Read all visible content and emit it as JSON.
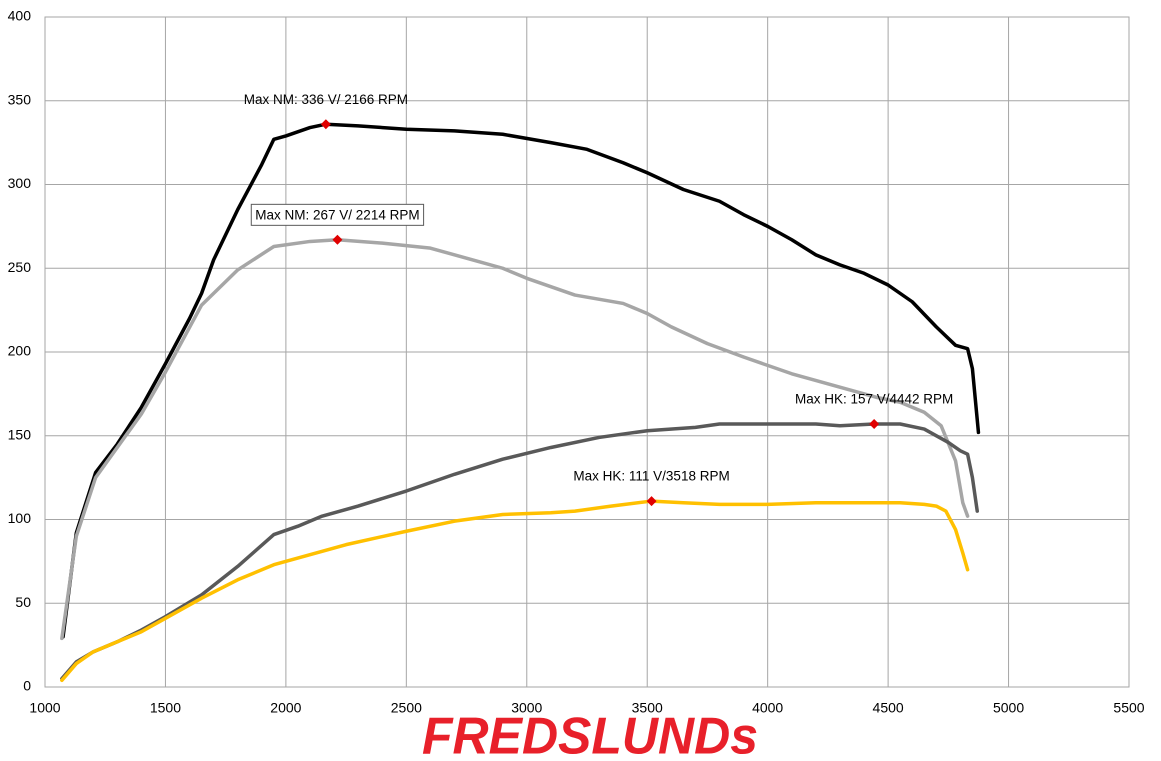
{
  "chart_data": {
    "type": "line",
    "xlim": [
      1000,
      5500
    ],
    "xticks": [
      1000,
      1500,
      2000,
      2500,
      3000,
      3500,
      4000,
      4500,
      5000,
      5500
    ],
    "ylim": [
      0,
      400
    ],
    "yticks": [
      0,
      50,
      100,
      150,
      200,
      250,
      300,
      350,
      400
    ],
    "grid": true,
    "series": [
      {
        "color": "#000000",
        "x": [
          1075,
          1130,
          1210,
          1300,
          1400,
          1500,
          1600,
          1650,
          1700,
          1800,
          1900,
          1950,
          2000,
          2100,
          2166,
          2300,
          2500,
          2700,
          2900,
          3100,
          3250,
          3400,
          3500,
          3650,
          3800,
          3900,
          4000,
          4100,
          4200,
          4300,
          4400,
          4500,
          4600,
          4700,
          4780,
          4830,
          4850,
          4875
        ],
        "values": [
          30,
          92,
          128,
          145,
          167,
          193,
          220,
          235,
          255,
          285,
          312,
          327,
          329,
          334,
          336,
          335,
          333,
          332,
          330,
          325,
          321,
          313,
          307,
          297,
          290,
          282,
          275,
          267,
          258,
          252,
          247,
          240,
          230,
          215,
          204,
          202,
          190,
          152
        ]
      },
      {
        "color": "#a6a6a6",
        "x": [
          1070,
          1130,
          1210,
          1400,
          1500,
          1650,
          1800,
          1950,
          2100,
          2214,
          2400,
          2600,
          2800,
          2900,
          3000,
          3200,
          3400,
          3500,
          3600,
          3750,
          3900,
          4100,
          4300,
          4450,
          4550,
          4650,
          4720,
          4780,
          4810,
          4830
        ],
        "values": [
          29,
          90,
          125,
          163,
          188,
          228,
          249,
          263,
          266,
          267,
          265,
          262,
          254,
          250,
          244,
          234,
          229,
          223,
          215,
          205,
          197,
          187,
          179,
          173,
          170,
          164,
          156,
          135,
          110,
          102
        ]
      },
      {
        "color": "#595959",
        "x": [
          1070,
          1130,
          1200,
          1300,
          1400,
          1500,
          1650,
          1800,
          1950,
          2050,
          2150,
          2300,
          2500,
          2700,
          2900,
          3100,
          3300,
          3500,
          3700,
          3800,
          4000,
          4200,
          4300,
          4442,
          4550,
          4650,
          4750,
          4800,
          4830,
          4850,
          4870
        ],
        "values": [
          5,
          15,
          21,
          27,
          34,
          42,
          55,
          72,
          91,
          96,
          102,
          108,
          117,
          127,
          136,
          143,
          149,
          153,
          155,
          157,
          157,
          157,
          156,
          157,
          157,
          154,
          146,
          141,
          139,
          125,
          105
        ]
      },
      {
        "color": "#ffc000",
        "x": [
          1070,
          1130,
          1200,
          1300,
          1400,
          1500,
          1650,
          1800,
          1950,
          2100,
          2250,
          2500,
          2700,
          2900,
          3100,
          3200,
          3350,
          3518,
          3650,
          3800,
          4000,
          4200,
          4442,
          4550,
          4650,
          4700,
          4740,
          4780,
          4810,
          4830
        ],
        "values": [
          4,
          14,
          21,
          27,
          33,
          41,
          53,
          64,
          73,
          79,
          85,
          93,
          99,
          103,
          104,
          105,
          108,
          111,
          110,
          109,
          109,
          110,
          110,
          110,
          109,
          108,
          105,
          94,
          80,
          70
        ]
      }
    ],
    "annotations": [
      {
        "text": "Max NM: 336 V/ 2166 RPM",
        "x": 2166,
        "y": 336,
        "boxed": false
      },
      {
        "text": "Max NM: 267 V/ 2214 RPM",
        "x": 2214,
        "y": 267,
        "boxed": true
      },
      {
        "text": "Max HK: 157 V/4442 RPM",
        "x": 4442,
        "y": 157,
        "boxed": false
      },
      {
        "text": "Max HK: 111 V/3518 RPM",
        "x": 3518,
        "y": 111,
        "boxed": false
      }
    ],
    "logo": "FREDSLUNDs"
  }
}
